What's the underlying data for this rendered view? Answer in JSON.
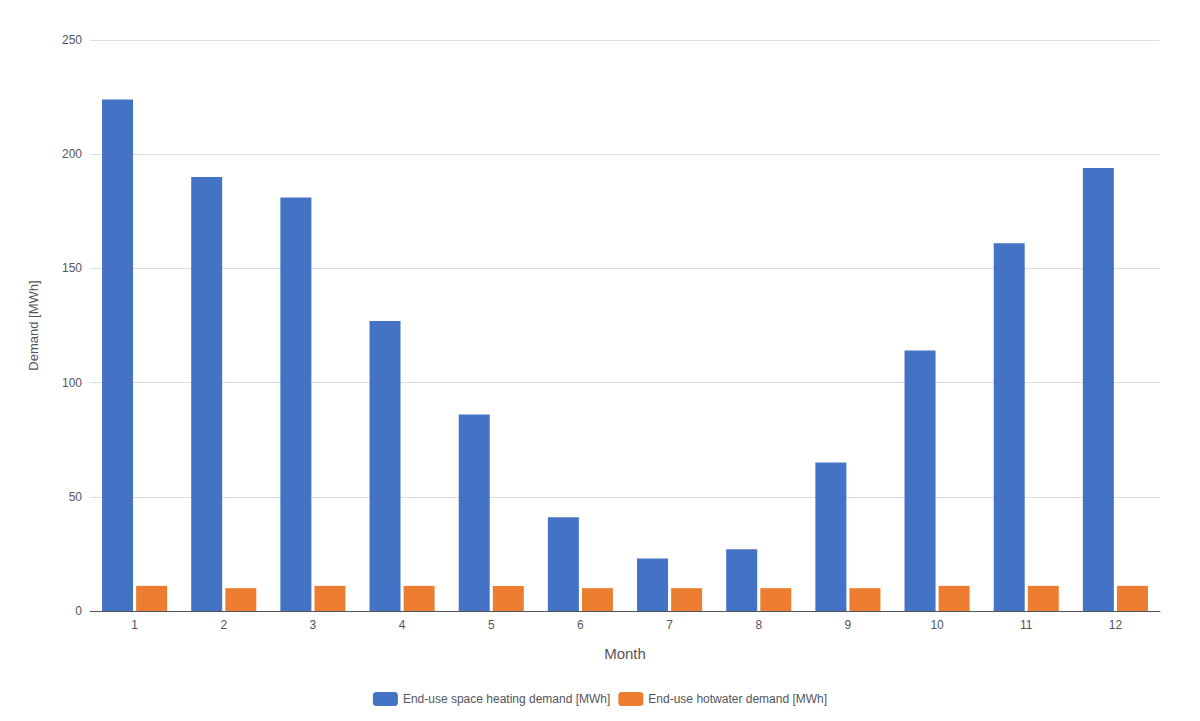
{
  "chart_data": {
    "type": "bar",
    "xlabel": "Month",
    "ylabel": "Demand [MWh]",
    "categories": [
      "1",
      "2",
      "3",
      "4",
      "5",
      "6",
      "7",
      "8",
      "9",
      "10",
      "11",
      "12"
    ],
    "series": [
      {
        "name": "End-use space heating demand [MWh]",
        "color": "#4472C4",
        "values": [
          224,
          190,
          181,
          127,
          86,
          41,
          23,
          27,
          65,
          114,
          161,
          194
        ]
      },
      {
        "name": "End-use hotwater demand [MWh]",
        "color": "#ED7D31",
        "values": [
          11,
          10,
          11,
          11,
          11,
          10,
          10,
          10,
          10,
          11,
          11,
          11
        ]
      }
    ],
    "ylim": [
      0,
      250
    ],
    "yticks": [
      0,
      50,
      100,
      150,
      200,
      250
    ],
    "grid": true,
    "legend": "bottom"
  }
}
